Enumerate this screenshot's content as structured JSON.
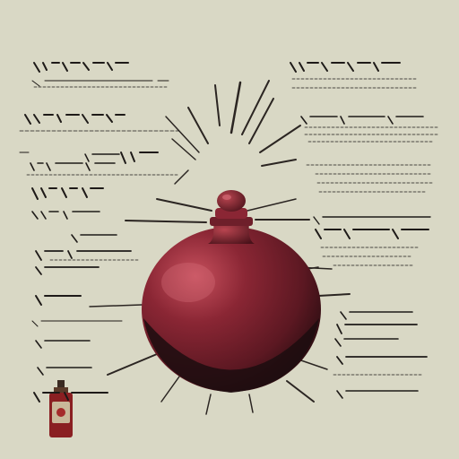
{
  "colors": {
    "background": "#d9d8c5",
    "ink": "#1e1a18",
    "flask_body": "#6e1f2a",
    "flask_highlight": "#b74552",
    "flask_shadow": "#1c0d0f",
    "small_bottle": "#8a1f22"
  },
  "illustration": {
    "central_object": "red-round-flask",
    "small_object": "small-red-bottle"
  }
}
